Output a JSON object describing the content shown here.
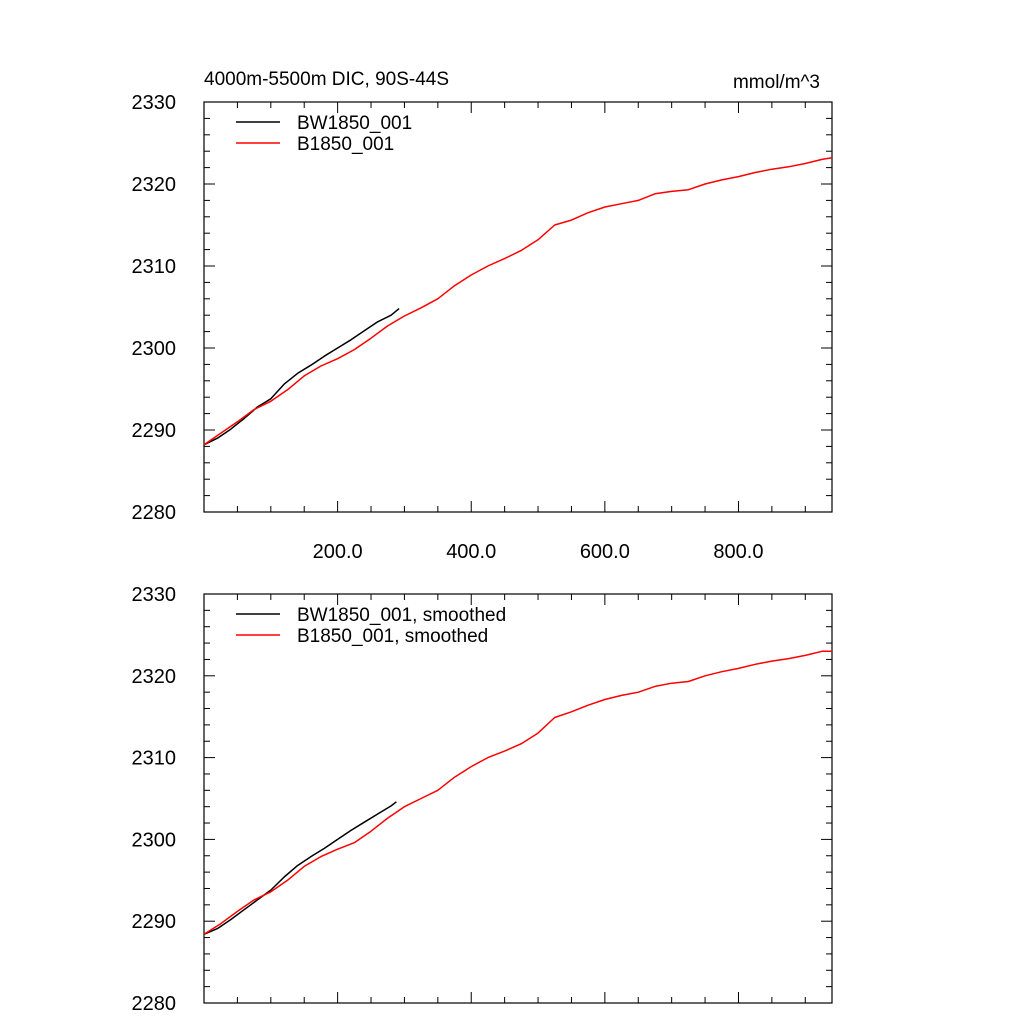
{
  "chart_data": [
    {
      "type": "line",
      "title": "4000m-5500m DIC, 90S-44S",
      "units": "mmol/m^3",
      "xlim": [
        0,
        940
      ],
      "ylim": [
        2280,
        2330
      ],
      "yticks": [
        2280,
        2290,
        2300,
        2310,
        2320,
        2330
      ],
      "xticks": [
        200,
        400,
        600,
        800
      ],
      "ytick_labels": [
        "2280",
        "2290",
        "2300",
        "2310",
        "2320",
        "2330"
      ],
      "xtick_labels": [
        "200.0",
        "400.0",
        "600.0",
        "800.0"
      ],
      "legend_position": "top-left",
      "series": [
        {
          "name": "BW1850_001",
          "color": "#000000",
          "x": [
            0,
            20,
            40,
            60,
            80,
            100,
            120,
            140,
            160,
            180,
            200,
            220,
            240,
            260,
            280,
            292
          ],
          "y": [
            2288.2,
            2289.0,
            2290.1,
            2291.4,
            2292.8,
            2293.8,
            2295.6,
            2296.9,
            2297.9,
            2299.0,
            2300.0,
            2301.0,
            2302.1,
            2303.2,
            2304.0,
            2304.8
          ]
        },
        {
          "name": "B1850_001",
          "color": "#ff0000",
          "x": [
            0,
            25,
            50,
            75,
            100,
            125,
            150,
            175,
            200,
            225,
            250,
            275,
            300,
            325,
            350,
            375,
            400,
            425,
            450,
            475,
            500,
            525,
            550,
            575,
            600,
            625,
            650,
            675,
            700,
            725,
            750,
            775,
            800,
            825,
            850,
            875,
            900,
            925,
            940
          ],
          "y": [
            2288.2,
            2289.6,
            2291.0,
            2292.5,
            2293.5,
            2294.9,
            2296.6,
            2297.8,
            2298.7,
            2299.8,
            2301.2,
            2302.7,
            2303.9,
            2304.9,
            2306.0,
            2307.6,
            2308.9,
            2310.0,
            2310.9,
            2311.9,
            2313.2,
            2315.0,
            2315.6,
            2316.5,
            2317.2,
            2317.6,
            2318.0,
            2318.8,
            2319.1,
            2319.3,
            2320.0,
            2320.5,
            2320.9,
            2321.4,
            2321.8,
            2322.1,
            2322.5,
            2323.0,
            2323.2
          ]
        }
      ]
    },
    {
      "type": "line",
      "xlim": [
        0,
        940
      ],
      "ylim": [
        2280,
        2330
      ],
      "yticks": [
        2280,
        2290,
        2300,
        2310,
        2320,
        2330
      ],
      "xticks": [
        200,
        400,
        600,
        800
      ],
      "ytick_labels": [
        "2280",
        "2290",
        "2300",
        "2310",
        "2320",
        "2330"
      ],
      "legend_position": "top-left",
      "series": [
        {
          "name": "BW1850_001, smoothed",
          "color": "#000000",
          "x": [
            0,
            20,
            40,
            60,
            80,
            100,
            120,
            140,
            160,
            180,
            200,
            220,
            240,
            260,
            280,
            288
          ],
          "y": [
            2288.4,
            2289.1,
            2290.2,
            2291.4,
            2292.6,
            2293.8,
            2295.4,
            2296.8,
            2297.9,
            2298.9,
            2300.0,
            2301.1,
            2302.1,
            2303.1,
            2304.1,
            2304.6
          ]
        },
        {
          "name": "B1850_001, smoothed",
          "color": "#ff0000",
          "x": [
            0,
            25,
            50,
            75,
            100,
            125,
            150,
            175,
            200,
            225,
            250,
            275,
            300,
            325,
            350,
            375,
            400,
            425,
            450,
            475,
            500,
            525,
            550,
            575,
            600,
            625,
            650,
            675,
            700,
            725,
            750,
            775,
            800,
            825,
            850,
            875,
            900,
            925,
            940
          ],
          "y": [
            2288.4,
            2289.7,
            2291.2,
            2292.6,
            2293.6,
            2295.0,
            2296.7,
            2297.9,
            2298.8,
            2299.6,
            2301.0,
            2302.6,
            2304.0,
            2305.0,
            2306.0,
            2307.6,
            2308.9,
            2310.0,
            2310.8,
            2311.7,
            2313.0,
            2314.9,
            2315.6,
            2316.4,
            2317.1,
            2317.6,
            2318.0,
            2318.7,
            2319.1,
            2319.3,
            2320.0,
            2320.5,
            2320.9,
            2321.4,
            2321.8,
            2322.1,
            2322.5,
            2323.0,
            2323.0
          ]
        }
      ]
    }
  ]
}
